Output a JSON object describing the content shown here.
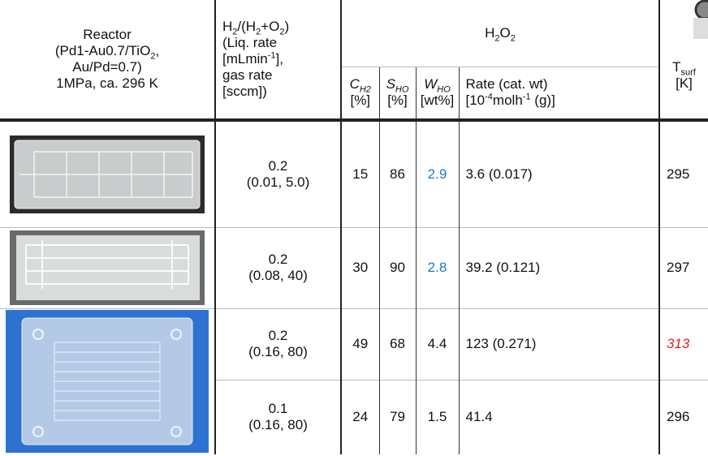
{
  "header": {
    "reactor": [
      "Reactor",
      "(Pd1-Au0.7/TiO",
      "2",
      ",",
      "Au/Pd=0.7)",
      "1MPa, ca. 296 K"
    ],
    "ratio": [
      "H",
      "2",
      "/(H",
      "2",
      "+O",
      "2",
      ")",
      "(Liq. rate",
      "[mLmin",
      "-1",
      "],",
      "gas rate",
      "[sccm])"
    ],
    "h2o2": [
      "H",
      "2",
      "O",
      "2"
    ],
    "c_h2": [
      "C",
      "H2",
      "[%]"
    ],
    "s_ho": [
      "S",
      "HO",
      "[%]"
    ],
    "w_ho": [
      "W",
      "HO",
      "[wt%]"
    ],
    "rate": [
      "Rate (cat. wt)",
      "[10",
      "-4",
      "molh",
      "-1",
      " (g)]"
    ],
    "t_surf": [
      "T",
      "surf",
      "[K]"
    ]
  },
  "rows": [
    [
      [
        "0.2",
        "(0.01, 5.0)"
      ],
      15,
      86,
      2.9,
      "3.6 (0.017)",
      295
    ],
    [
      [
        "0.2",
        "(0.08, 40)"
      ],
      30,
      90,
      2.8,
      "39.2 (0.121)",
      297
    ],
    [
      [
        "0.2",
        "(0.16, 80)"
      ],
      49,
      68,
      4.4,
      "123 (0.271)",
      313
    ],
    [
      [
        "0.1",
        "(0.16, 80)"
      ],
      24,
      79,
      1.5,
      "41.4",
      296
    ]
  ]
}
